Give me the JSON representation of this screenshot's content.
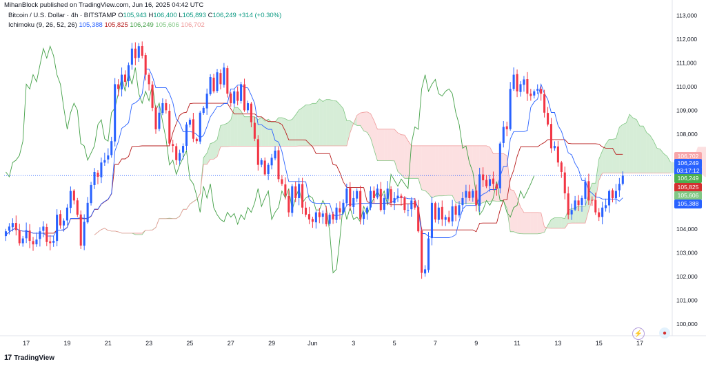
{
  "publisher_line": "MihanBlock published on TradingView.com, Jun 16, 2025 04:42 UTC",
  "legend": {
    "symbol": "Bitcoin / U.S. Dollar · 4h · BITSTAMP",
    "o_label": "O",
    "o": "105,943",
    "h_label": "H",
    "h": "106,400",
    "l_label": "L",
    "l": "105,893",
    "c_label": "C",
    "c": "106,249",
    "change": "+314 (+0.30%)",
    "indicator": "Ichimoku (9, 26, 52, 26)",
    "ind_values": [
      "105,388",
      "105,825",
      "106,249",
      "105,606",
      "106,702"
    ]
  },
  "brand": "TradingView",
  "badges": [
    {
      "text": "106,702",
      "color": "#f7a5a9"
    },
    {
      "text": "106,249",
      "color": "#2962ff"
    },
    {
      "text": "03:17:12",
      "color": "#2962ff"
    },
    {
      "text": "106,249",
      "color": "#4caf50"
    },
    {
      "text": "105,825",
      "color": "#d32f2f"
    },
    {
      "text": "105,606",
      "color": "#81c784"
    },
    {
      "text": "105,388",
      "color": "#2962ff"
    }
  ],
  "colors": {
    "up": "#2962ff",
    "down": "#f23645",
    "conversion": "#2962ff",
    "base": "#b71c1c",
    "lagging": "#43a047",
    "cloud_bull": "#a5d6a7",
    "cloud_bear": "#f8bbbc"
  },
  "chart_data": {
    "type": "candlestick",
    "title": "Bitcoin / U.S. Dollar · 4h · BITSTAMP",
    "y_ticks": [
      100000,
      101000,
      102000,
      103000,
      104000,
      105000,
      106000,
      107000,
      108000,
      109000,
      110000,
      111000,
      112000,
      113000
    ],
    "y_tick_labels": [
      "100,000",
      "101,000",
      "102,000",
      "103,000",
      "104,000",
      "105,000",
      "106,000",
      "107,000",
      "108,000",
      "109,000",
      "110,000",
      "111,000",
      "112,000",
      "113,000"
    ],
    "ylim": [
      99500,
      113300
    ],
    "x_tick_labels": [
      "17",
      "19",
      "21",
      "23",
      "25",
      "27",
      "29",
      "Jun",
      "3",
      "5",
      "7",
      "9",
      "11",
      "13",
      "15",
      "17"
    ],
    "x_tick_index": [
      6,
      18,
      30,
      42,
      54,
      66,
      78,
      90,
      102,
      114,
      126,
      138,
      150,
      162,
      174,
      186
    ],
    "closes": [
      103900,
      104100,
      104250,
      103950,
      103400,
      103600,
      103950,
      103500,
      103350,
      103550,
      103900,
      104100,
      103450,
      103400,
      103500,
      104600,
      104150,
      104350,
      104900,
      105600,
      105200,
      104600,
      103300,
      104300,
      105100,
      105850,
      106400,
      106200,
      106800,
      106900,
      107100,
      107700,
      110100,
      109900,
      110500,
      110200,
      110900,
      111600,
      111200,
      111700,
      111300,
      110500,
      110100,
      109100,
      108200,
      108900,
      109300,
      109000,
      107600,
      107500,
      106900,
      107200,
      107500,
      108400,
      108600,
      107800,
      107700,
      108900,
      109100,
      109700,
      110400,
      109800,
      110600,
      110100,
      110800,
      109700,
      109300,
      109800,
      109400,
      110100,
      109000,
      109300,
      108500,
      107800,
      106700,
      106900,
      106300,
      106700,
      107000,
      107300,
      106100,
      105900,
      105400,
      104700,
      105800,
      105300,
      105900,
      104900,
      104600,
      104400,
      104300,
      104700,
      104500,
      104650,
      104200,
      104600,
      104400,
      104900,
      104700,
      105100,
      105700,
      104950,
      105300,
      105600,
      104400,
      104700,
      104900,
      105600,
      105300,
      105700,
      104800,
      105300,
      105700,
      105100,
      105300,
      105400,
      105300,
      104800,
      104800,
      105200,
      104900,
      103900,
      102150,
      102300,
      103600,
      105100,
      104400,
      104900,
      104400,
      104500,
      104300,
      104950,
      104600,
      105000,
      105300,
      105600,
      105300,
      105600,
      105000,
      106300,
      106050,
      105800,
      106100,
      105900,
      105700,
      107600,
      108300,
      108200,
      109900,
      110500,
      109800,
      110100,
      110300,
      109700,
      109600,
      109800,
      109900,
      109700,
      108900,
      108400,
      107400,
      107500,
      106800,
      106400,
      105500,
      104600,
      104800,
      105200,
      105000,
      105300,
      106000,
      105200,
      105200,
      104700,
      104500,
      104900,
      105000,
      105600,
      105300,
      105600,
      105900,
      106249
    ],
    "ichimoku": {
      "conversion": "computed_from_candles_9",
      "base": "computed_from_candles_26",
      "span_a": "computed",
      "span_b": "computed_from_candles_52",
      "lagging": "close_shifted_-26"
    }
  }
}
